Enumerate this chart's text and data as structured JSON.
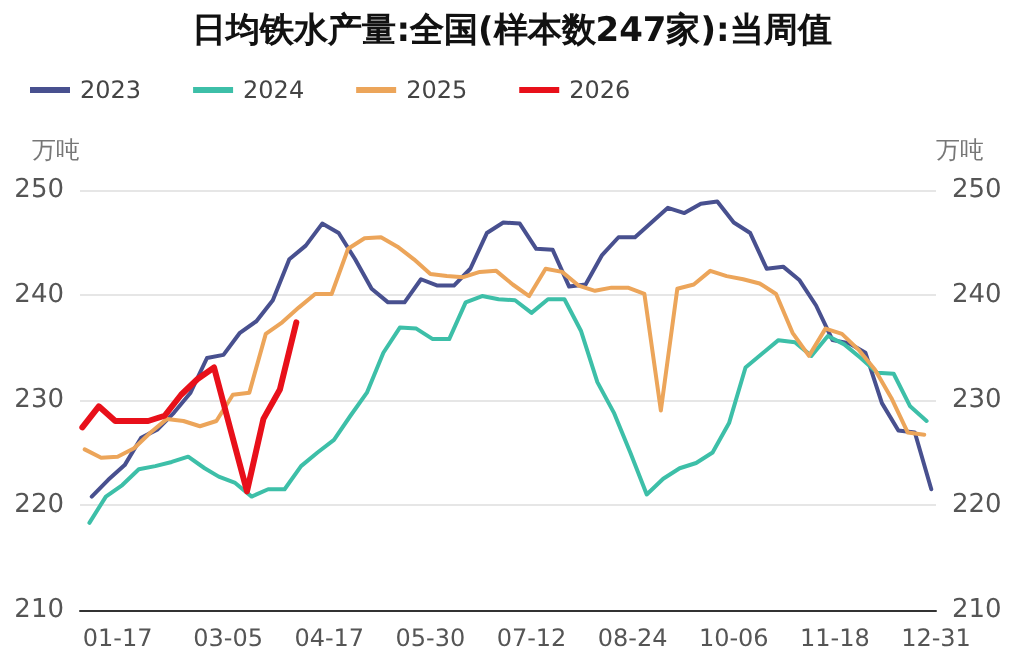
{
  "chart_data": {
    "type": "line",
    "title": "日均铁水产量:全国(样本数247家):当周值",
    "ylabel": "万吨",
    "y2label": "万吨",
    "xlim": [
      "--01-01",
      "--12-31"
    ],
    "xticks": [
      {
        "value": "--01-17",
        "label": "01-17"
      },
      {
        "value": "--03-05",
        "label": "03-05"
      },
      {
        "value": "--04-17",
        "label": "04-17"
      },
      {
        "value": "--05-30",
        "label": "05-30"
      },
      {
        "value": "--07-12",
        "label": "07-12"
      },
      {
        "value": "--08-24",
        "label": "08-24"
      },
      {
        "value": "--10-06",
        "label": "10-06"
      },
      {
        "value": "--11-18",
        "label": "11-18"
      },
      {
        "value": "--12-31",
        "label": "12-31"
      }
    ],
    "ylim": [
      210,
      250
    ],
    "yticks": [
      210,
      220,
      230,
      240,
      250
    ],
    "y2lim": [
      210,
      250
    ],
    "y2ticks": [
      210,
      220,
      230,
      240,
      250
    ],
    "grid": "y",
    "legend": "top left",
    "marker": "none",
    "line_style": "solid",
    "series": [
      {
        "name": "2023",
        "color": "#48508f",
        "x": [
          "--01-06",
          "--01-13",
          "--01-20",
          "--01-27",
          "--02-03",
          "--02-10",
          "--02-17",
          "--02-24",
          "--03-03",
          "--03-10",
          "--03-17",
          "--03-24",
          "--03-31",
          "--04-07",
          "--04-14",
          "--04-21",
          "--04-28",
          "--05-05",
          "--05-12",
          "--05-19",
          "--05-26",
          "--06-02",
          "--06-09",
          "--06-16",
          "--06-23",
          "--06-30",
          "--07-07",
          "--07-14",
          "--07-21",
          "--07-28",
          "--08-04",
          "--08-11",
          "--08-18",
          "--08-25",
          "--09-01",
          "--09-08",
          "--09-15",
          "--09-22",
          "--09-29",
          "--10-06",
          "--10-13",
          "--10-20",
          "--10-27",
          "--11-03",
          "--11-10",
          "--11-17",
          "--11-24",
          "--12-01",
          "--12-08",
          "--12-15",
          "--12-22",
          "--12-29"
        ],
        "values": [
          220.8,
          222.4,
          223.8,
          226.4,
          227.2,
          228.8,
          230.7,
          234.0,
          234.3,
          236.4,
          237.5,
          239.5,
          243.4,
          244.7,
          246.8,
          245.9,
          243.4,
          240.6,
          239.3,
          239.3,
          241.5,
          240.9,
          240.9,
          242.5,
          245.9,
          246.9,
          246.8,
          244.4,
          244.3,
          240.8,
          241.0,
          243.8,
          245.5,
          245.5,
          246.9,
          248.3,
          247.8,
          248.7,
          248.9,
          246.9,
          245.9,
          242.5,
          242.7,
          241.4,
          239.0,
          235.7,
          235.4,
          234.5,
          229.7,
          227.1,
          226.9,
          221.5
        ]
      },
      {
        "name": "2024",
        "color": "#3dbfa8",
        "x": [
          "--01-05",
          "--01-12",
          "--01-19",
          "--01-26",
          "--02-02",
          "--02-09",
          "--02-16",
          "--02-23",
          "--03-01",
          "--03-08",
          "--03-15",
          "--03-22",
          "--03-29",
          "--04-05",
          "--04-12",
          "--04-19",
          "--04-26",
          "--05-03",
          "--05-10",
          "--05-17",
          "--05-24",
          "--05-31",
          "--06-07",
          "--06-14",
          "--06-21",
          "--06-28",
          "--07-05",
          "--07-12",
          "--07-19",
          "--07-26",
          "--08-02",
          "--08-09",
          "--08-16",
          "--08-23",
          "--08-30",
          "--09-06",
          "--09-13",
          "--09-20",
          "--09-27",
          "--10-04",
          "--10-11",
          "--10-18",
          "--10-25",
          "--11-01",
          "--11-08",
          "--11-15",
          "--11-22",
          "--11-29",
          "--12-06",
          "--12-13",
          "--12-20",
          "--12-27"
        ],
        "values": [
          218.3,
          220.8,
          221.9,
          223.4,
          223.7,
          224.1,
          224.6,
          223.5,
          222.7,
          222.1,
          220.8,
          221.5,
          221.5,
          223.7,
          225.0,
          226.2,
          228.5,
          230.7,
          234.5,
          236.9,
          236.8,
          235.8,
          235.8,
          239.3,
          239.9,
          239.6,
          239.5,
          238.3,
          239.6,
          239.6,
          236.6,
          231.7,
          228.8,
          225.0,
          221.0,
          222.5,
          223.5,
          224.0,
          225.0,
          227.8,
          233.1,
          234.4,
          235.7,
          235.5,
          234.2,
          236.1,
          235.3,
          234.0,
          232.6,
          232.5,
          229.4,
          228.0
        ]
      },
      {
        "name": "2025",
        "color": "#eca55a",
        "x": [
          "--01-03",
          "--01-10",
          "--01-17",
          "--01-24",
          "--01-31",
          "--02-07",
          "--02-14",
          "--02-21",
          "--02-28",
          "--03-07",
          "--03-14",
          "--03-21",
          "--03-28",
          "--04-04",
          "--04-11",
          "--04-18",
          "--04-25",
          "--05-02",
          "--05-09",
          "--05-16",
          "--05-23",
          "--05-30",
          "--06-06",
          "--06-13",
          "--06-20",
          "--06-27",
          "--07-04",
          "--07-11",
          "--07-18",
          "--07-25",
          "--08-01",
          "--08-08",
          "--08-15",
          "--08-22",
          "--08-29",
          "--09-05",
          "--09-12",
          "--09-19",
          "--09-26",
          "--10-03",
          "--10-10",
          "--10-17",
          "--10-24",
          "--10-31",
          "--11-07",
          "--11-14",
          "--11-21",
          "--11-28",
          "--12-05",
          "--12-12",
          "--12-19",
          "--12-26"
        ],
        "values": [
          225.3,
          224.5,
          224.6,
          225.4,
          226.9,
          228.2,
          228.0,
          227.5,
          228.0,
          230.5,
          230.7,
          236.3,
          237.4,
          238.8,
          240.1,
          240.1,
          244.4,
          245.4,
          245.5,
          244.6,
          243.4,
          242.0,
          241.8,
          241.7,
          242.2,
          242.3,
          241.0,
          239.9,
          242.5,
          242.2,
          240.9,
          240.4,
          240.7,
          240.7,
          240.1,
          229.0,
          240.6,
          241.0,
          242.3,
          241.8,
          241.5,
          241.1,
          240.1,
          236.4,
          234.2,
          236.8,
          236.3,
          234.8,
          232.9,
          230.2,
          226.9,
          226.7
        ]
      },
      {
        "name": "2026",
        "color": "#e8101a",
        "x": [
          "--01-02",
          "--01-09",
          "--01-16",
          "--01-23",
          "--01-30",
          "--02-06",
          "--02-13",
          "--02-20",
          "--02-27",
          "--03-06",
          "--03-13",
          "--03-20",
          "--03-27",
          "--04-03"
        ],
        "values": [
          227.4,
          229.4,
          228.0,
          228.0,
          228.0,
          228.5,
          230.5,
          232.0,
          233.1,
          227.2,
          221.3,
          228.2,
          231.0,
          237.4
        ]
      }
    ]
  }
}
